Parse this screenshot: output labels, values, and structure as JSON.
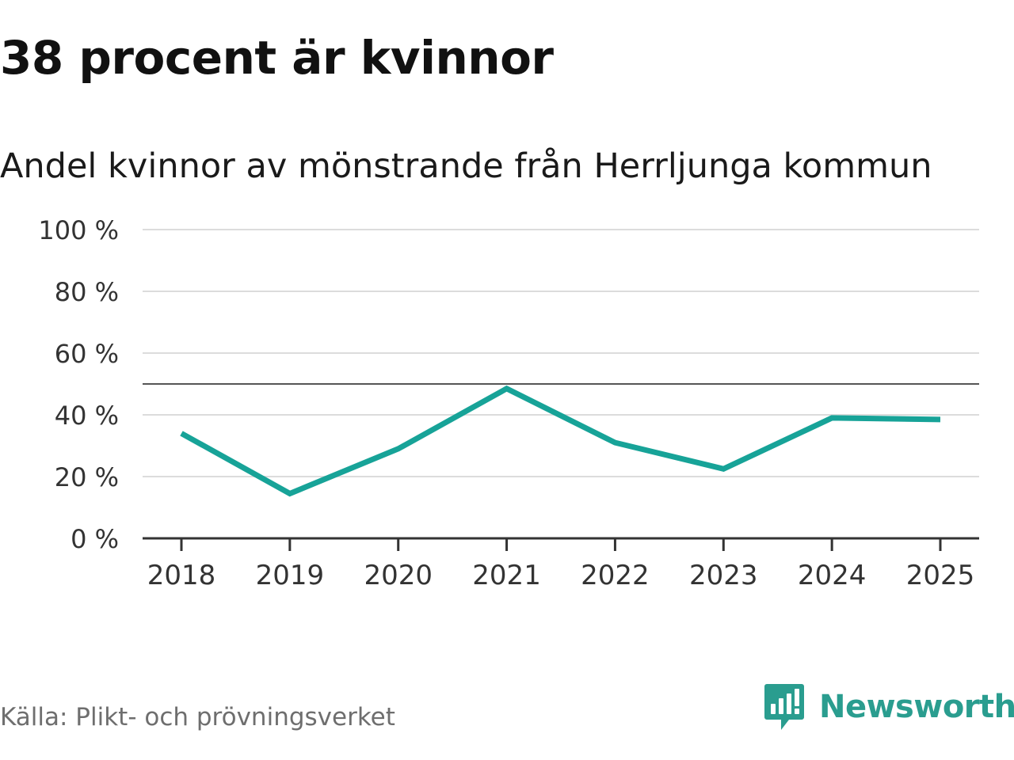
{
  "title": "38 procent är kvinnor",
  "subtitle": "Andel kvinnor av mönstrande från Herrljunga kommun",
  "source": "Källa: Plikt- och prövningsverket",
  "brand": {
    "name": "Newsworthy",
    "icon": "newsworthy-logo-icon",
    "color": "#2a9d8f"
  },
  "colors": {
    "series": "#17a398",
    "grid": "#dcdcdc",
    "axis": "#333333",
    "reference": "#555555"
  },
  "chart_data": {
    "type": "line",
    "title": "38 procent är kvinnor",
    "subtitle": "Andel kvinnor av mönstrande från Herrljunga kommun",
    "xlabel": "",
    "ylabel": "",
    "categories": [
      "2018",
      "2019",
      "2020",
      "2021",
      "2022",
      "2023",
      "2024",
      "2025"
    ],
    "series": [
      {
        "name": "Andel kvinnor",
        "values": [
          34,
          14.5,
          29,
          48.5,
          31,
          22.5,
          39,
          38.5
        ]
      }
    ],
    "ylim": [
      0,
      100
    ],
    "yticks": [
      0,
      20,
      40,
      60,
      80,
      100
    ],
    "ytick_labels": [
      "0 %",
      "20 %",
      "40 %",
      "60 %",
      "80 %",
      "100 %"
    ],
    "reference_line": 50,
    "grid": true,
    "legend": "none"
  }
}
